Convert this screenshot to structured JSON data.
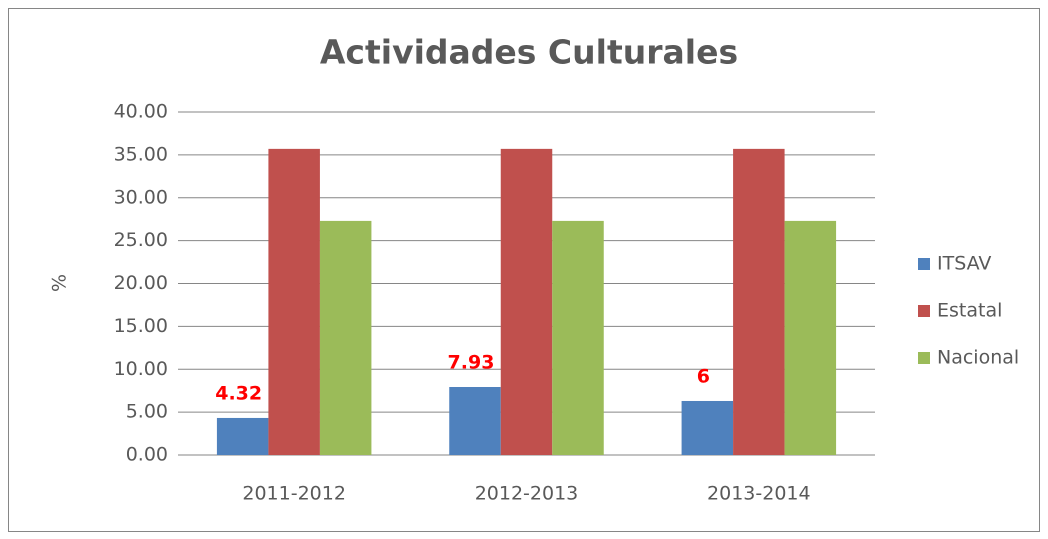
{
  "chart_data": {
    "type": "bar",
    "title": "Actividades Culturales",
    "y_label": "%",
    "categories": [
      "2011-2012",
      "2012-2013",
      "2013-2014"
    ],
    "series": [
      {
        "name": "ITSAV",
        "color": "#4f81bd",
        "values": [
          4.32,
          7.93,
          6.3
        ],
        "value_labels": [
          "4.32",
          "7.93",
          "6"
        ]
      },
      {
        "name": "Estatal",
        "color": "#c0504d",
        "values": [
          35.7,
          35.7,
          35.7
        ]
      },
      {
        "name": "Nacional",
        "color": "#9bbb59",
        "values": [
          27.3,
          27.3,
          27.3
        ]
      }
    ],
    "ylim": [
      0,
      40
    ],
    "yticks": [
      {
        "value": 0,
        "label": "0.00"
      },
      {
        "value": 5,
        "label": "5.00"
      },
      {
        "value": 10,
        "label": "10.00"
      },
      {
        "value": 15,
        "label": "15.00"
      },
      {
        "value": 20,
        "label": "20.00"
      },
      {
        "value": 25,
        "label": "25.00"
      },
      {
        "value": 30,
        "label": "30.00"
      },
      {
        "value": 35,
        "label": "35.00"
      },
      {
        "value": 40,
        "label": "40.00"
      }
    ],
    "grid": true,
    "legend": "right"
  }
}
